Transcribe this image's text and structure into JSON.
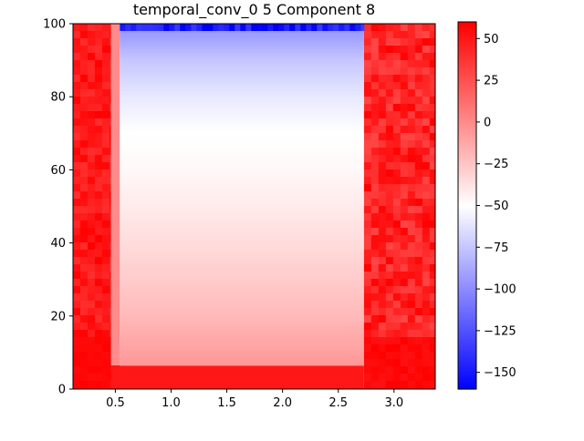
{
  "chart_data": {
    "type": "heatmap",
    "title": "temporal_conv_0 5 Component 8",
    "xlabel": "",
    "ylabel": "",
    "xlim": [
      0.12,
      3.37
    ],
    "ylim": [
      0,
      100
    ],
    "x_ticks": [
      0.5,
      1.0,
      1.5,
      2.0,
      2.5,
      3.0
    ],
    "x_tick_labels": [
      "0.5",
      "1.0",
      "1.5",
      "2.0",
      "2.5",
      "3.0"
    ],
    "y_ticks": [
      0,
      20,
      40,
      60,
      80,
      100
    ],
    "y_tick_labels": [
      "0",
      "20",
      "40",
      "60",
      "80",
      "100"
    ],
    "colorbar": {
      "cmap": "bwr",
      "vmin": -160,
      "vmax": 60,
      "ticks": [
        50,
        25,
        0,
        -25,
        -50,
        -75,
        -100,
        -125,
        -150
      ],
      "tick_labels": [
        "50",
        "25",
        "0",
        "−25",
        "−50",
        "−75",
        "−100",
        "−125",
        "−150"
      ]
    },
    "regions": [
      {
        "name": "left-band",
        "x": [
          0.12,
          0.46
        ],
        "y": [
          0,
          100
        ],
        "value_range": [
          40,
          60
        ]
      },
      {
        "name": "right-band",
        "x": [
          2.73,
          3.37
        ],
        "y": [
          0,
          100
        ],
        "value_range": [
          30,
          60
        ]
      },
      {
        "name": "bottom-band",
        "x": [
          0.46,
          2.73
        ],
        "y": [
          0,
          6.5
        ],
        "value": 50
      },
      {
        "name": "border-strip",
        "x": [
          0.46,
          0.54
        ],
        "y": [
          6.5,
          100
        ],
        "value": 0
      },
      {
        "name": "central-gradient",
        "x": [
          0.54,
          2.73
        ],
        "y": [
          6.5,
          98
        ],
        "profile": [
          [
            6.5,
            -5
          ],
          [
            20,
            -20
          ],
          [
            40,
            -35
          ],
          [
            60,
            -47
          ],
          [
            70,
            -50
          ],
          [
            80,
            -60
          ],
          [
            90,
            -75
          ],
          [
            98,
            -95
          ]
        ]
      },
      {
        "name": "top-blue-strip",
        "x": [
          0.54,
          2.73
        ],
        "y": [
          98,
          100
        ],
        "value": -150
      }
    ]
  }
}
